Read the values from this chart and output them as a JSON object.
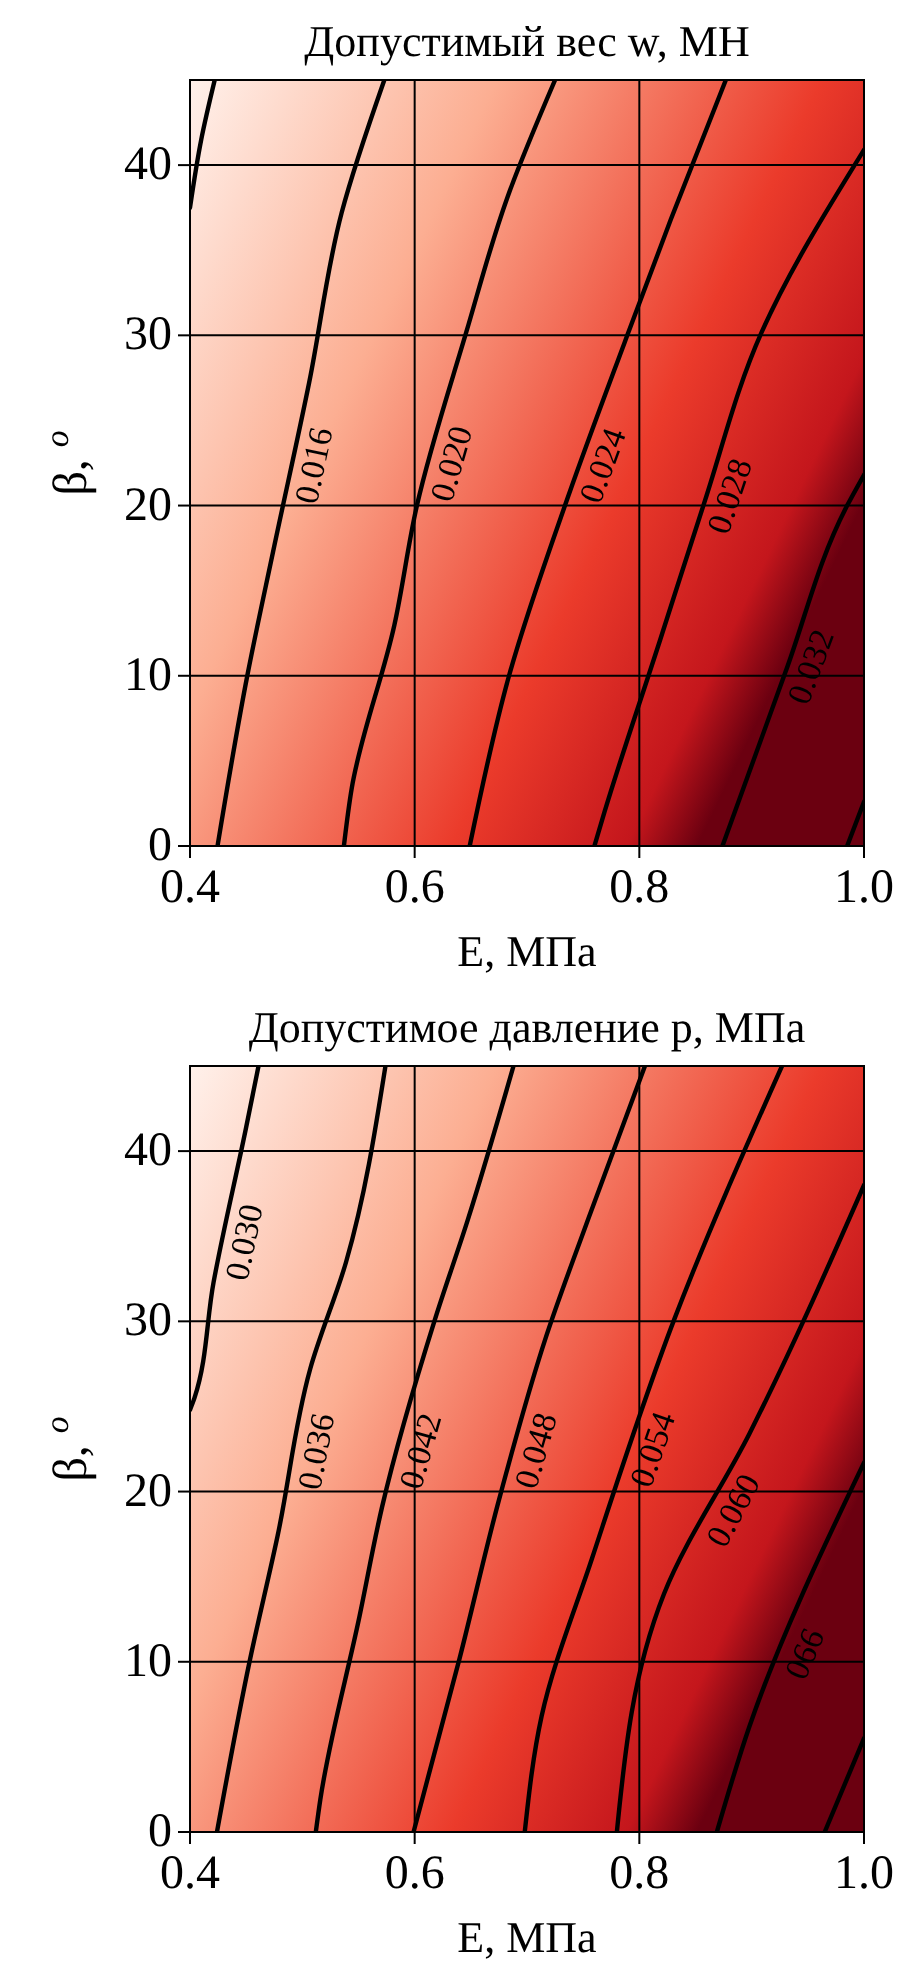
{
  "chart_data": [
    {
      "type": "line",
      "title": "Допустимый вес w, МН",
      "xlabel": "E, МПа",
      "ylabel": "β, $^{o}$",
      "xlim": [
        0.4,
        1.0
      ],
      "ylim": [
        0,
        45
      ],
      "xticks": [
        0.4,
        0.6,
        0.8,
        {
          "value": 1,
          "label": "1.0"
        }
      ],
      "yticks": [
        0,
        10,
        20,
        30,
        40
      ],
      "grid": true,
      "series": [
        {
          "color": "#000000",
          "x": [
            0.4,
            0.41,
            0.422
          ],
          "values": [
            37.5,
            41.5,
            45
          ]
        },
        {
          "name": "0.016",
          "color": "#000000",
          "x": [
            0.4245,
            0.451,
            0.474,
            0.506,
            0.535,
            0.573
          ],
          "values": [
            0,
            10,
            17.3,
            27.2,
            37.2,
            45
          ]
        },
        {
          "name": "0.020",
          "color": "#000000",
          "x": [
            0.537,
            0.544,
            0.582,
            0.602,
            0.646,
            0.682,
            0.725
          ],
          "values": [
            0,
            3.4,
            13,
            20,
            30.2,
            38,
            45
          ]
        },
        {
          "name": "0.024",
          "color": "#000000",
          "x": [
            0.649,
            0.684,
            0.737,
            0.787,
            0.828,
            0.877
          ],
          "values": [
            0,
            10,
            20.6,
            29.6,
            36.8,
            45
          ]
        },
        {
          "name": "0.028",
          "color": "#000000",
          "x": [
            0.76,
            0.769,
            0.818,
            0.857,
            0.909,
            1.0
          ],
          "values": [
            0,
            2,
            12,
            20,
            30.2,
            40.9
          ]
        },
        {
          "name": "0.032",
          "color": "#000000",
          "x": [
            0.874,
            0.93,
            0.985,
            1.0
          ],
          "values": [
            0,
            10.2,
            20,
            21.8
          ]
        },
        {
          "color": "#000000",
          "x": [
            0.985,
            1.0
          ],
          "values": [
            0,
            2.6
          ]
        }
      ]
    },
    {
      "type": "line",
      "title": "Допустимое давление p, МПа",
      "xlabel": "E, МПа",
      "ylabel": "β, $^{o}$",
      "xlim": [
        0.4,
        1.0
      ],
      "ylim": [
        0,
        45
      ],
      "xticks": [
        0.4,
        0.6,
        0.8,
        {
          "value": 1,
          "label": "1.0"
        }
      ],
      "yticks": [
        0,
        10,
        20,
        30,
        40
      ],
      "grid": true,
      "series": [
        {
          "name": "0.030",
          "color": "#000000",
          "x": [
            0.4,
            0.404,
            0.421,
            0.45,
            0.461
          ],
          "values": [
            24.8,
            25.5,
            32.3,
            41.4,
            45
          ]
        },
        {
          "name": "0.036",
          "color": "#000000",
          "x": [
            0.424,
            0.453,
            0.478,
            0.507,
            0.539,
            0.574
          ],
          "values": [
            0,
            10,
            17.4,
            27.2,
            33.5,
            45
          ]
        },
        {
          "name": "0.042",
          "color": "#000000",
          "x": [
            0.512,
            0.516,
            0.551,
            0.571,
            0.618,
            0.647,
            0.688
          ],
          "values": [
            0,
            1.9,
            12.7,
            19.1,
            30.1,
            35.9,
            45
          ]
        },
        {
          "name": "0.048",
          "color": "#000000",
          "x": [
            0.599,
            0.64,
            0.675,
            0.717,
            0.755,
            0.805
          ],
          "values": [
            0,
            10.2,
            19.5,
            29.1,
            36.1,
            45
          ]
        },
        {
          "name": "0.054",
          "color": "#000000",
          "x": [
            0.698,
            0.713,
            0.758,
            0.831,
            0.927
          ],
          "values": [
            0,
            6.8,
            16.1,
            30.1,
            45
          ]
        },
        {
          "name": "0.060",
          "color": "#000000",
          "x": [
            0.78,
            0.822,
            0.898,
            1.0
          ],
          "values": [
            0,
            14,
            23.4,
            38
          ]
        },
        {
          "name": "066",
          "color": "#000000",
          "x": [
            0.869,
            0.898,
            1.0
          ],
          "values": [
            0,
            6.2,
            21.7
          ]
        },
        {
          "color": "#000000",
          "x": [
            0.965,
            1.0
          ],
          "values": [
            0,
            5.5
          ]
        }
      ]
    }
  ]
}
